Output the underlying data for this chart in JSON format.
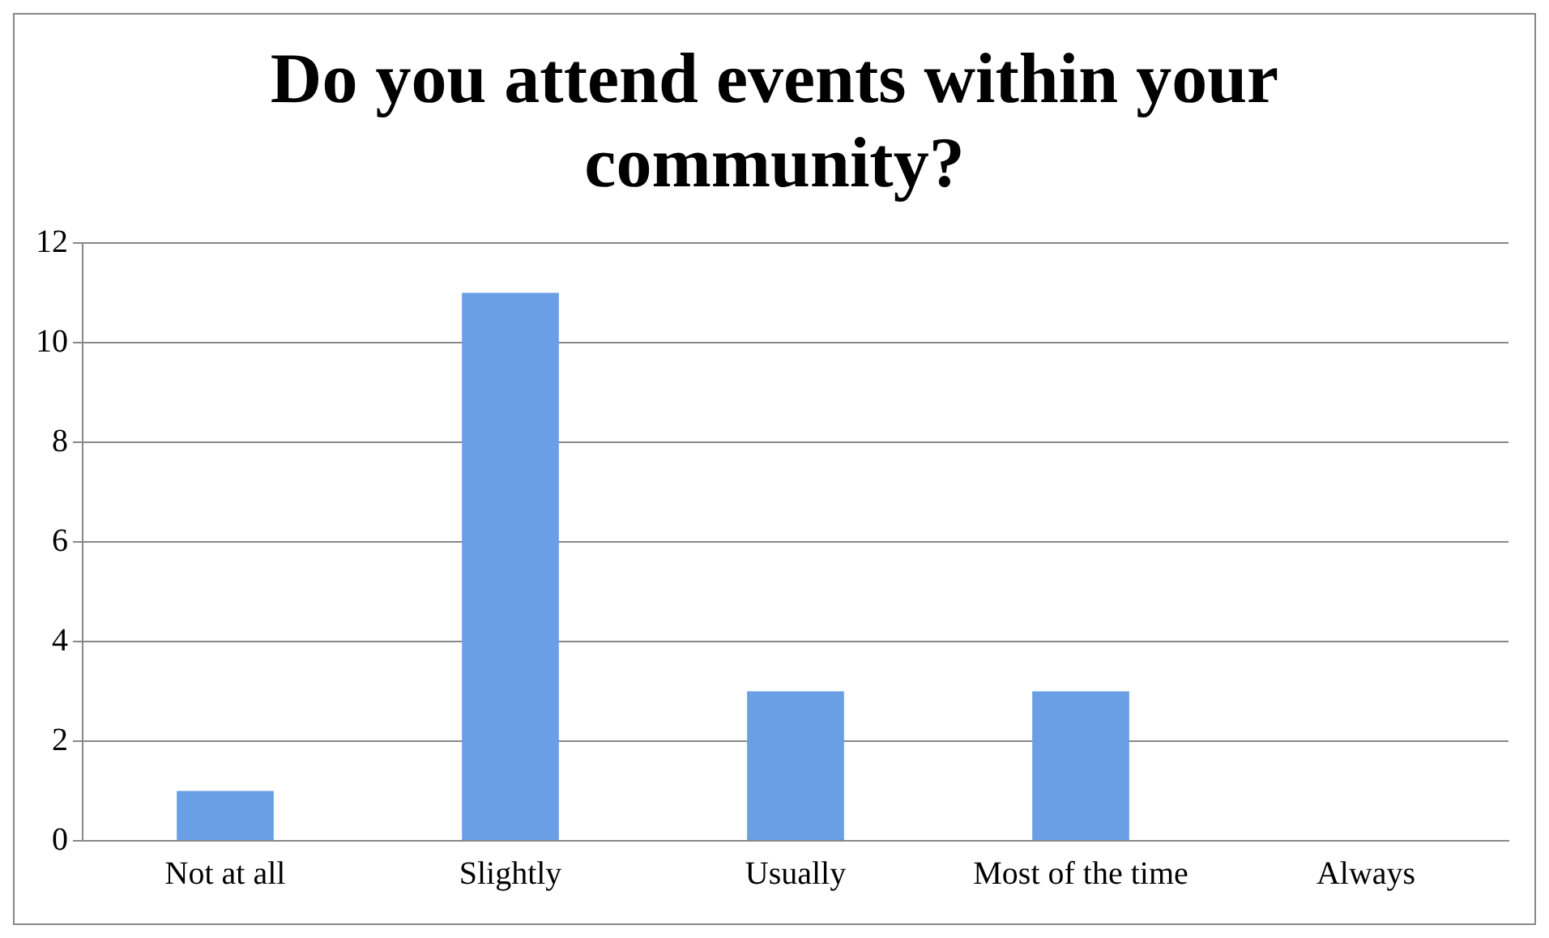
{
  "chart_data": {
    "type": "bar",
    "title": "Do you attend events within your community?",
    "categories": [
      "Not at all",
      "Slightly",
      "Usually",
      "Most of the time",
      "Always"
    ],
    "values": [
      1,
      11,
      3,
      3,
      0
    ],
    "color": "#6a9fe6",
    "ylim": [
      0,
      12
    ],
    "yticks": [
      0,
      2,
      4,
      6,
      8,
      10,
      12
    ],
    "grid": "y",
    "legend": false
  }
}
